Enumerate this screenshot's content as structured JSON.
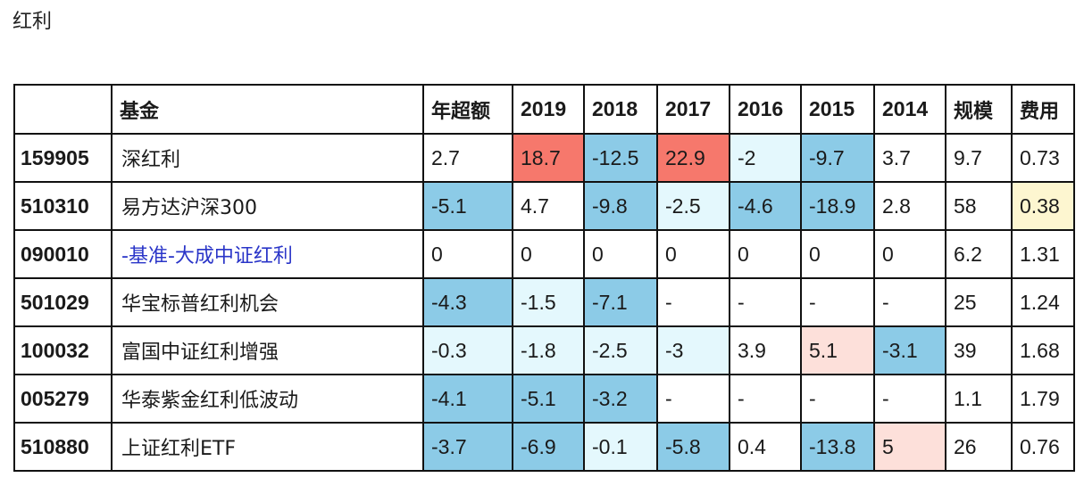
{
  "page": {
    "title": "红利"
  },
  "colors": {
    "strong_positive": "#f6786c",
    "mild_positive": "#fde0da",
    "strong_negative": "#8ccbe7",
    "mild_negative": "#e4f8fd",
    "low_fee_highlight": "#fdf6d0",
    "benchmark_text": "#2a35c8"
  },
  "table": {
    "headers": [
      "",
      "基金",
      "年超额",
      "2019",
      "2018",
      "2017",
      "2016",
      "2015",
      "2014",
      "规模",
      "费用"
    ],
    "rows": [
      {
        "code": "159905",
        "name": "深红利",
        "values": [
          "2.7",
          "18.7",
          "-12.5",
          "22.9",
          "-2",
          "-9.7",
          "3.7",
          "9.7",
          "0.73"
        ],
        "colors": [
          "none",
          "red",
          "blue",
          "red",
          "lightblue",
          "blue",
          "none",
          "none",
          "none"
        ]
      },
      {
        "code": "510310",
        "name": "易方达沪深300",
        "values": [
          "-5.1",
          "4.7",
          "-9.8",
          "-2.5",
          "-4.6",
          "-18.9",
          "2.8",
          "58",
          "0.38"
        ],
        "colors": [
          "blue",
          "none",
          "blue",
          "lightblue",
          "blue",
          "blue",
          "none",
          "none",
          "yellow"
        ]
      },
      {
        "code": "090010",
        "name": "-基准-大成中证红利",
        "benchmark": true,
        "values": [
          "0",
          "0",
          "0",
          "0",
          "0",
          "0",
          "0",
          "6.2",
          "1.31"
        ],
        "colors": [
          "none",
          "none",
          "none",
          "none",
          "none",
          "none",
          "none",
          "none",
          "none"
        ]
      },
      {
        "code": "501029",
        "name": "华宝标普红利机会",
        "values": [
          "-4.3",
          "-1.5",
          "-7.1",
          "-",
          "-",
          "-",
          "-",
          "25",
          "1.24"
        ],
        "colors": [
          "blue",
          "lightblue",
          "blue",
          "none",
          "none",
          "none",
          "none",
          "none",
          "none"
        ]
      },
      {
        "code": "100032",
        "name": "富国中证红利增强",
        "values": [
          "-0.3",
          "-1.8",
          "-2.5",
          "-3",
          "3.9",
          "5.1",
          "-3.1",
          "39",
          "1.68"
        ],
        "colors": [
          "lightblue",
          "lightblue",
          "lightblue",
          "lightblue",
          "none",
          "pink",
          "blue",
          "none",
          "none"
        ]
      },
      {
        "code": "005279",
        "name": "华泰紫金红利低波动",
        "values": [
          "-4.1",
          "-5.1",
          "-3.2",
          "-",
          "-",
          "-",
          "-",
          "1.1",
          "1.79"
        ],
        "colors": [
          "blue",
          "blue",
          "blue",
          "none",
          "none",
          "none",
          "none",
          "none",
          "none"
        ]
      },
      {
        "code": "510880",
        "name": "上证红利ETF",
        "values": [
          "-3.7",
          "-6.9",
          "-0.1",
          "-5.8",
          "0.4",
          "-13.8",
          "5",
          "26",
          "0.76"
        ],
        "colors": [
          "blue",
          "blue",
          "lightblue",
          "blue",
          "none",
          "blue",
          "pink",
          "none",
          "none"
        ]
      }
    ]
  }
}
